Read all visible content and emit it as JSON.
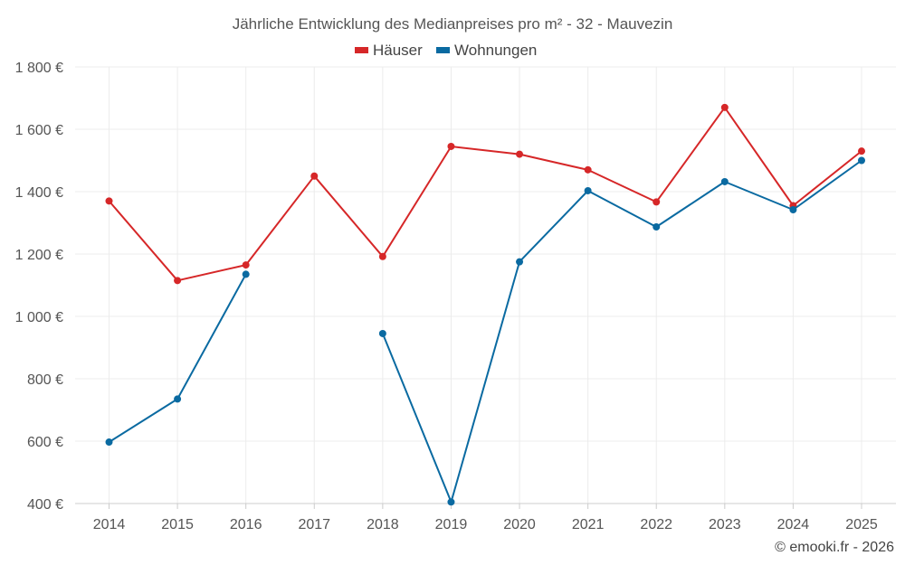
{
  "chart_data": {
    "type": "line",
    "title": "Jährliche Entwicklung des Medianpreises pro m² - 32 - Mauvezin",
    "categories": [
      "2014",
      "2015",
      "2016",
      "2017",
      "2018",
      "2019",
      "2020",
      "2021",
      "2022",
      "2023",
      "2024",
      "2025"
    ],
    "series": [
      {
        "name": "Häuser",
        "color": "#d62728",
        "values": [
          1370,
          1115,
          1165,
          1450,
          1192,
          1545,
          1520,
          1470,
          1367,
          1670,
          1355,
          1530
        ]
      },
      {
        "name": "Wohnungen",
        "color": "#0a6aa1",
        "values": [
          597,
          735,
          1135,
          null,
          945,
          405,
          1175,
          1403,
          1287,
          1432,
          1342,
          1500
        ]
      }
    ],
    "ylim": [
      400,
      1800
    ],
    "yticks": [
      {
        "value": 400,
        "label": "400 €"
      },
      {
        "value": 600,
        "label": "600 €"
      },
      {
        "value": 800,
        "label": "800 €"
      },
      {
        "value": 1000,
        "label": "1 000 €"
      },
      {
        "value": 1200,
        "label": "1 200 €"
      },
      {
        "value": 1400,
        "label": "1 400 €"
      },
      {
        "value": 1600,
        "label": "1 600 €"
      },
      {
        "value": 1800,
        "label": "1 800 €"
      }
    ],
    "xlabel": "",
    "ylabel": "",
    "legend_position": "top-center"
  },
  "credit": "© emooki.fr - 2026"
}
